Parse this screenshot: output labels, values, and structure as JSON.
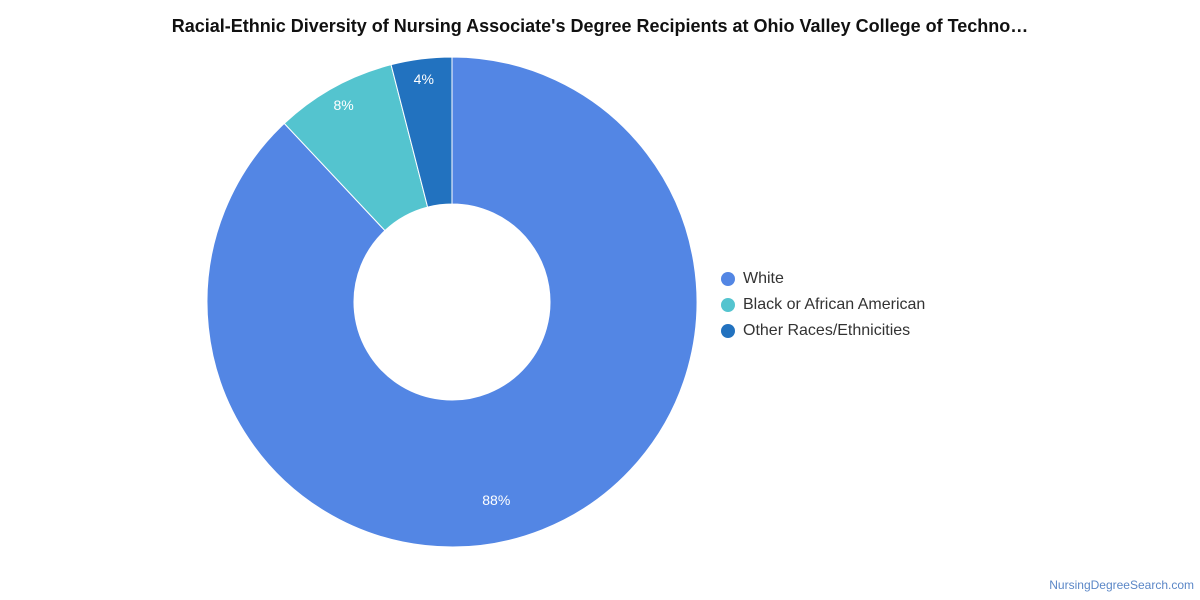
{
  "chart_data": {
    "type": "pie",
    "title": "Racial-Ethnic Diversity of Nursing Associate's Degree Recipients at Ohio Valley College of Techno…",
    "donut": true,
    "legend_position": "right",
    "slices": [
      {
        "label": "White",
        "value": 88,
        "display": "88%",
        "color": "#5386E4"
      },
      {
        "label": "Black or African American",
        "value": 8,
        "display": "8%",
        "color": "#54C4CF"
      },
      {
        "label": "Other Races/Ethnicities",
        "value": 4,
        "display": "4%",
        "color": "#2272BF"
      }
    ]
  },
  "footer": {
    "source": "NursingDegreeSearch.com"
  }
}
